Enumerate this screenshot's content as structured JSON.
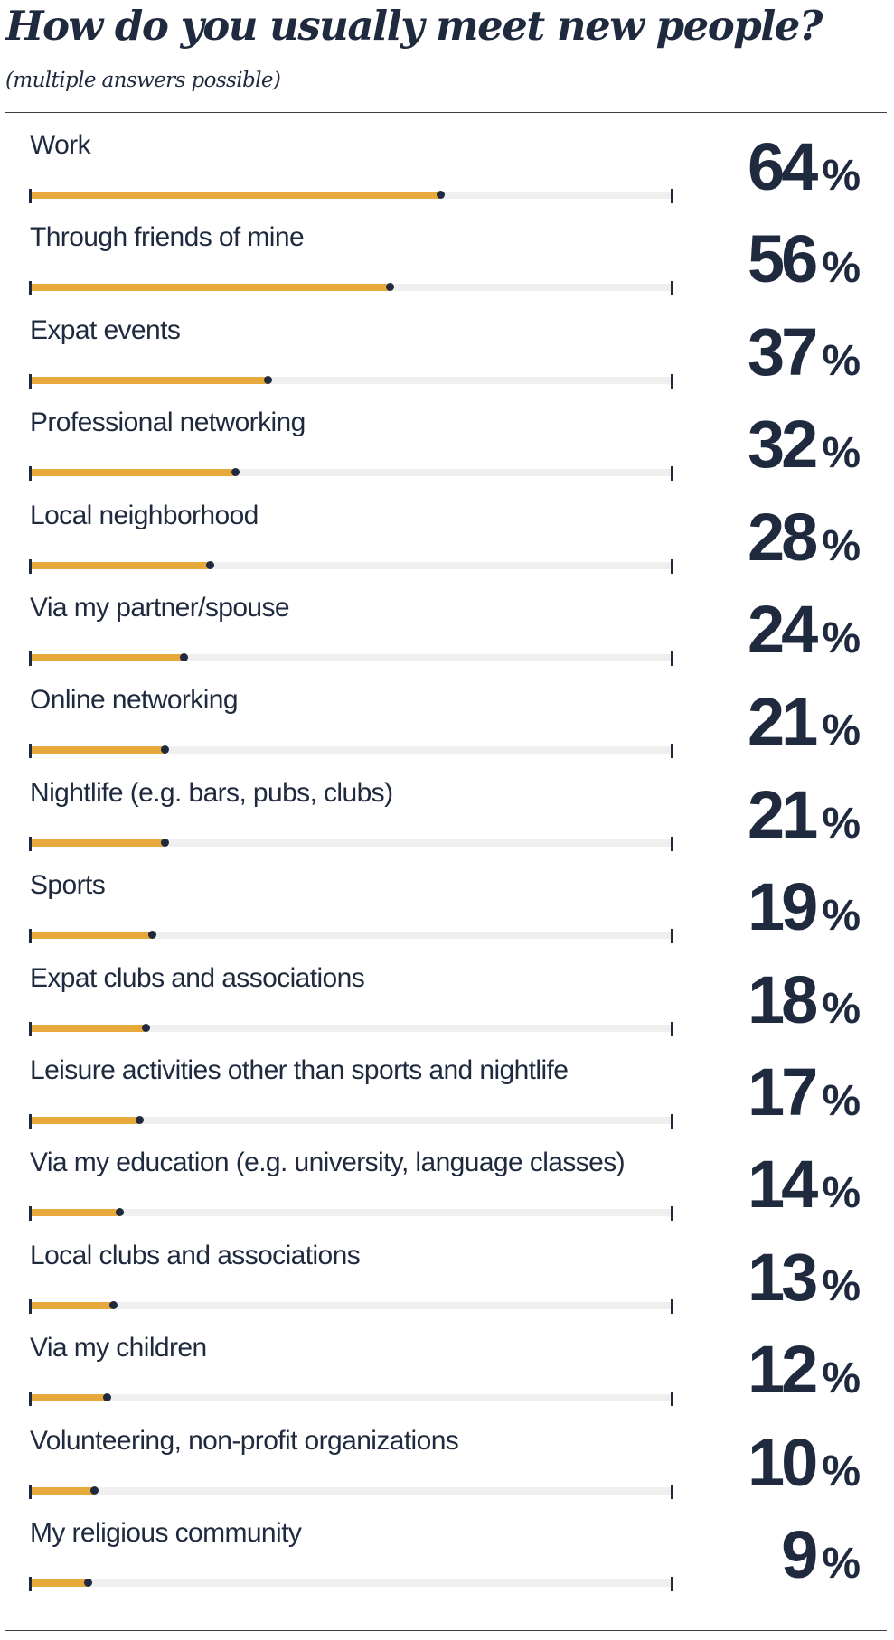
{
  "chart_data": {
    "type": "bar",
    "title": "How do you usually meet new people?",
    "subtitle": "(multiple answers possible)",
    "unit": "%",
    "xlim": [
      0,
      100
    ],
    "colors": {
      "bar": "#e8a93c",
      "track": "#efefef",
      "text": "#1f2a3e"
    },
    "categories": [
      "Work",
      "Through friends of mine",
      "Expat events",
      "Professional networking",
      "Local neighborhood",
      "Via my partner/spouse",
      "Online networking",
      "Nightlife (e.g. bars, pubs, clubs)",
      "Sports",
      "Expat clubs and associations",
      "Leisure activities other than sports and nightlife",
      "Via my education (e.g. university, language classes)",
      "Local clubs and associations",
      "Via my children",
      "Volunteering, non-profit organizations",
      "My religious community"
    ],
    "values": [
      64,
      56,
      37,
      32,
      28,
      24,
      21,
      21,
      19,
      18,
      17,
      14,
      13,
      12,
      10,
      9
    ]
  }
}
